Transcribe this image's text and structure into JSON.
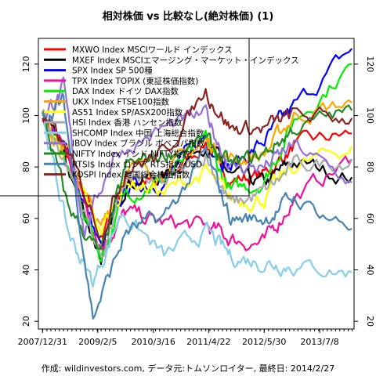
{
  "chart_data": {
    "type": "line",
    "title": "相対株価 vs 比較なし(絶対株価) (1)",
    "footer": "作成: wildinvestors.com, データ元:トムソンロイター, 最終日: 2014/2/27",
    "x_tick_labels": [
      "2007/12/31",
      "2009/2/5",
      "2010/3/16",
      "2011/4/22",
      "2012/5/30",
      "2013/7/8"
    ],
    "x_tick_dates": [
      "2007-12-31",
      "2009-02-05",
      "2010-03-16",
      "2011-04-22",
      "2012-05-30",
      "2013-07-08"
    ],
    "xlim": [
      "2007-12-01",
      "2014-03-15"
    ],
    "ylim": [
      17,
      130
    ],
    "y_ticks": [
      20,
      40,
      60,
      80,
      100,
      120
    ],
    "grid": false,
    "legend_position": "top-left",
    "series": [
      {
        "name": "MXWO Index MSCIワールド インデックス",
        "color": "#ff0000",
        "values": [
          {
            "x": "2008-01-01",
            "y": 100
          },
          {
            "x": "2008-07-01",
            "y": 84
          },
          {
            "x": "2009-03-01",
            "y": 52
          },
          {
            "x": "2009-09-01",
            "y": 76
          },
          {
            "x": "2010-06-01",
            "y": 74
          },
          {
            "x": "2011-04-01",
            "y": 90
          },
          {
            "x": "2011-10-01",
            "y": 75
          },
          {
            "x": "2012-06-01",
            "y": 77
          },
          {
            "x": "2013-01-01",
            "y": 88
          },
          {
            "x": "2014-02-27",
            "y": 93
          }
        ]
      },
      {
        "name": "MXEF Index MSCIエマージング・マーケット・インデックス",
        "color": "#000000",
        "values": [
          {
            "x": "2008-01-01",
            "y": 100
          },
          {
            "x": "2008-07-01",
            "y": 80
          },
          {
            "x": "2009-03-01",
            "y": 45
          },
          {
            "x": "2009-09-01",
            "y": 75
          },
          {
            "x": "2010-06-01",
            "y": 76
          },
          {
            "x": "2011-04-01",
            "y": 90
          },
          {
            "x": "2011-10-01",
            "y": 76
          },
          {
            "x": "2012-06-01",
            "y": 73
          },
          {
            "x": "2013-01-01",
            "y": 82
          },
          {
            "x": "2014-02-27",
            "y": 76
          }
        ]
      },
      {
        "name": "SPX Index SP 500種",
        "color": "#0000ff",
        "values": [
          {
            "x": "2008-01-01",
            "y": 100
          },
          {
            "x": "2008-07-01",
            "y": 85
          },
          {
            "x": "2009-03-01",
            "y": 48
          },
          {
            "x": "2009-09-01",
            "y": 72
          },
          {
            "x": "2010-06-01",
            "y": 75
          },
          {
            "x": "2011-04-01",
            "y": 92
          },
          {
            "x": "2011-10-01",
            "y": 80
          },
          {
            "x": "2012-06-01",
            "y": 90
          },
          {
            "x": "2013-01-01",
            "y": 103
          },
          {
            "x": "2014-02-27",
            "y": 126
          }
        ]
      },
      {
        "name": "TPX Index TOPIX (東証株価指数)",
        "color": "#ee1199",
        "values": [
          {
            "x": "2008-01-01",
            "y": 100
          },
          {
            "x": "2008-07-01",
            "y": 85
          },
          {
            "x": "2009-03-01",
            "y": 50
          },
          {
            "x": "2009-09-01",
            "y": 62
          },
          {
            "x": "2010-06-01",
            "y": 58
          },
          {
            "x": "2011-04-01",
            "y": 57
          },
          {
            "x": "2011-10-01",
            "y": 52
          },
          {
            "x": "2012-06-01",
            "y": 50
          },
          {
            "x": "2013-01-01",
            "y": 68
          },
          {
            "x": "2014-02-27",
            "y": 83
          }
        ]
      },
      {
        "name": "DAX Index ドイツ DAX指数",
        "color": "#00ee00",
        "values": [
          {
            "x": "2008-01-01",
            "y": 100
          },
          {
            "x": "2008-07-01",
            "y": 80
          },
          {
            "x": "2009-03-01",
            "y": 45
          },
          {
            "x": "2009-09-01",
            "y": 70
          },
          {
            "x": "2010-06-01",
            "y": 75
          },
          {
            "x": "2011-04-01",
            "y": 90
          },
          {
            "x": "2011-10-01",
            "y": 70
          },
          {
            "x": "2012-06-01",
            "y": 75
          },
          {
            "x": "2013-01-01",
            "y": 98
          },
          {
            "x": "2014-02-27",
            "y": 120
          }
        ]
      },
      {
        "name": "UKX Index FTSE100指数",
        "color": "#ffa500",
        "values": [
          {
            "x": "2008-01-01",
            "y": 100
          },
          {
            "x": "2008-07-01",
            "y": 85
          },
          {
            "x": "2009-03-01",
            "y": 55
          },
          {
            "x": "2009-09-01",
            "y": 80
          },
          {
            "x": "2010-06-01",
            "y": 78
          },
          {
            "x": "2011-04-01",
            "y": 90
          },
          {
            "x": "2011-10-01",
            "y": 83
          },
          {
            "x": "2012-06-01",
            "y": 85
          },
          {
            "x": "2013-01-01",
            "y": 100
          },
          {
            "x": "2014-02-27",
            "y": 105
          }
        ]
      },
      {
        "name": "AS51 Index SP/ASX200指数",
        "color": "#ffff00",
        "values": [
          {
            "x": "2008-01-01",
            "y": 100
          },
          {
            "x": "2008-07-01",
            "y": 82
          },
          {
            "x": "2009-03-01",
            "y": 55
          },
          {
            "x": "2009-09-01",
            "y": 75
          },
          {
            "x": "2010-06-01",
            "y": 70
          },
          {
            "x": "2011-04-01",
            "y": 78
          },
          {
            "x": "2011-10-01",
            "y": 67
          },
          {
            "x": "2012-06-01",
            "y": 68
          },
          {
            "x": "2013-01-01",
            "y": 80
          },
          {
            "x": "2014-02-27",
            "y": 88
          }
        ]
      },
      {
        "name": "HSI Index 香港 ハンセン指数",
        "color": "#aaaaaa",
        "values": [
          {
            "x": "2008-01-01",
            "y": 100
          },
          {
            "x": "2008-07-01",
            "y": 80
          },
          {
            "x": "2009-03-01",
            "y": 45
          },
          {
            "x": "2009-09-01",
            "y": 75
          },
          {
            "x": "2010-06-01",
            "y": 73
          },
          {
            "x": "2011-04-01",
            "y": 85
          },
          {
            "x": "2011-10-01",
            "y": 65
          },
          {
            "x": "2012-06-01",
            "y": 70
          },
          {
            "x": "2013-01-01",
            "y": 80
          },
          {
            "x": "2014-02-27",
            "y": 83
          }
        ]
      },
      {
        "name": "SHCOMP Index 中国 上海総合指数",
        "color": "#87ceeb",
        "values": [
          {
            "x": "2008-01-01",
            "y": 100
          },
          {
            "x": "2008-07-01",
            "y": 55
          },
          {
            "x": "2009-01-01",
            "y": 35
          },
          {
            "x": "2009-08-01",
            "y": 63
          },
          {
            "x": "2010-06-01",
            "y": 45
          },
          {
            "x": "2011-04-01",
            "y": 55
          },
          {
            "x": "2011-10-01",
            "y": 45
          },
          {
            "x": "2012-06-01",
            "y": 43
          },
          {
            "x": "2013-01-01",
            "y": 42
          },
          {
            "x": "2014-02-27",
            "y": 39
          }
        ]
      },
      {
        "name": "IBOV Index ブラジル ボベスパ指数",
        "color": "#9370db",
        "values": [
          {
            "x": "2008-01-01",
            "y": 100
          },
          {
            "x": "2008-06-01",
            "y": 110
          },
          {
            "x": "2008-11-01",
            "y": 55
          },
          {
            "x": "2009-06-01",
            "y": 85
          },
          {
            "x": "2010-06-01",
            "y": 95
          },
          {
            "x": "2011-04-01",
            "y": 100
          },
          {
            "x": "2011-10-01",
            "y": 80
          },
          {
            "x": "2012-06-01",
            "y": 80
          },
          {
            "x": "2013-01-01",
            "y": 88
          },
          {
            "x": "2014-02-27",
            "y": 74
          }
        ]
      },
      {
        "name": "NIFTY Index インド NIFTY指数",
        "color": "#228b22",
        "values": [
          {
            "x": "2008-01-01",
            "y": 100
          },
          {
            "x": "2008-07-01",
            "y": 65
          },
          {
            "x": "2009-03-01",
            "y": 45
          },
          {
            "x": "2009-09-01",
            "y": 80
          },
          {
            "x": "2010-06-01",
            "y": 85
          },
          {
            "x": "2011-04-01",
            "y": 90
          },
          {
            "x": "2011-10-01",
            "y": 80
          },
          {
            "x": "2012-06-01",
            "y": 85
          },
          {
            "x": "2013-01-01",
            "y": 95
          },
          {
            "x": "2014-02-27",
            "y": 102
          }
        ]
      },
      {
        "name": "RTSI$ Index ロシア RTS指数 USD",
        "color": "#4682b4",
        "values": [
          {
            "x": "2008-01-01",
            "y": 100
          },
          {
            "x": "2008-06-01",
            "y": 105
          },
          {
            "x": "2009-01-01",
            "y": 22
          },
          {
            "x": "2009-09-01",
            "y": 55
          },
          {
            "x": "2010-06-01",
            "y": 60
          },
          {
            "x": "2011-04-01",
            "y": 85
          },
          {
            "x": "2011-10-01",
            "y": 60
          },
          {
            "x": "2012-06-01",
            "y": 60
          },
          {
            "x": "2013-01-01",
            "y": 68
          },
          {
            "x": "2014-02-27",
            "y": 56
          }
        ]
      },
      {
        "name": "KOSPI Index 韓国総合株価指数",
        "color": "#8b2323",
        "values": [
          {
            "x": "2008-01-01",
            "y": 100
          },
          {
            "x": "2008-07-01",
            "y": 85
          },
          {
            "x": "2009-03-01",
            "y": 55
          },
          {
            "x": "2009-09-01",
            "y": 80
          },
          {
            "x": "2010-06-01",
            "y": 85
          },
          {
            "x": "2011-04-01",
            "y": 110
          },
          {
            "x": "2011-10-01",
            "y": 95
          },
          {
            "x": "2012-06-01",
            "y": 95
          },
          {
            "x": "2013-01-01",
            "y": 100
          },
          {
            "x": "2014-02-27",
            "y": 99
          }
        ]
      }
    ]
  }
}
